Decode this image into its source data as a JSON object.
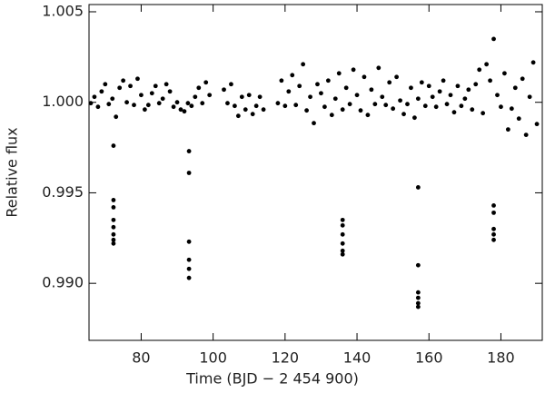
{
  "chart_data": {
    "type": "scatter",
    "xlabel": "Time (BJD − 2 454 900)",
    "ylabel": "Relative flux",
    "xlim": [
      65.5,
      191.5
    ],
    "ylim": [
      0.98685,
      1.0054
    ],
    "xticks": [
      80,
      100,
      120,
      140,
      160,
      180
    ],
    "yticks": [
      {
        "value": 0.99,
        "label": "0.990"
      },
      0.995,
      {
        "value": 1,
        "label": "1.000"
      },
      1.005
    ],
    "grid": false,
    "x": [
      66,
      67,
      68,
      69,
      70,
      71,
      72,
      73,
      74,
      75,
      76,
      77,
      78,
      79,
      80,
      81,
      82,
      83,
      84,
      85,
      86,
      87,
      88,
      89,
      90,
      91,
      92,
      93,
      94,
      95,
      96,
      97,
      98,
      99,
      103,
      104,
      105,
      106,
      107,
      108,
      109,
      110,
      111,
      112,
      113,
      114,
      118,
      119,
      120,
      121,
      122,
      123,
      124,
      125,
      126,
      127,
      128,
      129,
      130,
      131,
      132,
      133,
      134,
      135,
      136,
      137,
      138,
      139,
      140,
      141,
      142,
      143,
      144,
      145,
      146,
      147,
      148,
      149,
      150,
      151,
      152,
      153,
      154,
      155,
      156,
      157,
      158,
      159,
      160,
      161,
      162,
      163,
      164,
      165,
      166,
      167,
      168,
      169,
      170,
      171,
      172,
      173,
      174,
      175,
      176,
      177,
      178,
      179,
      180,
      181,
      182,
      183,
      184,
      185,
      186,
      187,
      188,
      189,
      190,
      72.3,
      72.3,
      72.3,
      72.3,
      72.3,
      72.3,
      72.3,
      72.3,
      93.3,
      93.3,
      93.3,
      93.3,
      93.3,
      93.3,
      136,
      136,
      136,
      136,
      136,
      136,
      157,
      157,
      157,
      157,
      157,
      157,
      178,
      178,
      178,
      178,
      178
    ],
    "series": [
      {
        "name": "Flux",
        "color": "#000000",
        "values": [
          0.99995,
          1.0003,
          0.99975,
          1.0006,
          1.001,
          0.9999,
          1.0002,
          0.9992,
          1.0008,
          1.0012,
          1.0,
          1.0009,
          0.99985,
          1.0013,
          1.0004,
          0.9996,
          0.99985,
          1.0005,
          1.0009,
          0.99995,
          1.0002,
          1.001,
          1.0006,
          0.99975,
          1.0,
          0.9996,
          0.9995,
          0.99995,
          0.9998,
          1.0003,
          1.0008,
          0.99995,
          1.0011,
          1.0004,
          1.0007,
          0.99995,
          1.001,
          0.9998,
          0.99925,
          1.0003,
          0.9996,
          1.0004,
          0.99935,
          0.9998,
          1.0003,
          0.9996,
          0.99995,
          1.0012,
          0.9998,
          1.0006,
          1.0015,
          0.99985,
          1.0009,
          1.0021,
          0.99955,
          1.0003,
          0.99885,
          1.001,
          1.0005,
          0.99975,
          1.0012,
          0.9993,
          1.0002,
          1.0016,
          0.9996,
          1.0008,
          0.9999,
          1.0018,
          1.0004,
          0.99955,
          1.0014,
          0.9993,
          1.0007,
          0.9999,
          1.0019,
          1.0003,
          0.99985,
          1.0011,
          0.99965,
          1.0014,
          1.0001,
          0.99935,
          0.9999,
          1.0008,
          0.99915,
          1.0002,
          1.0011,
          0.9998,
          1.0009,
          1.0003,
          0.99975,
          1.0006,
          1.0012,
          0.9999,
          1.0004,
          0.99945,
          1.0009,
          0.9998,
          1.0002,
          1.0007,
          0.9996,
          1.001,
          1.0018,
          0.9994,
          1.0021,
          1.0012,
          1.0035,
          1.0004,
          0.99975,
          1.0016,
          0.9985,
          0.99965,
          1.0008,
          0.9991,
          1.0013,
          0.9982,
          1.0003,
          1.0022,
          0.9988,
          0.9976,
          0.9946,
          0.9942,
          0.9935,
          0.9931,
          0.9927,
          0.9924,
          0.9922,
          0.9973,
          0.9961,
          0.9923,
          0.9913,
          0.9908,
          0.9903,
          0.9935,
          0.9932,
          0.9927,
          0.9922,
          0.9918,
          0.9916,
          0.9953,
          0.991,
          0.9895,
          0.9892,
          0.9889,
          0.9887,
          0.9943,
          0.9939,
          0.993,
          0.9927,
          0.9924
        ]
      }
    ]
  }
}
